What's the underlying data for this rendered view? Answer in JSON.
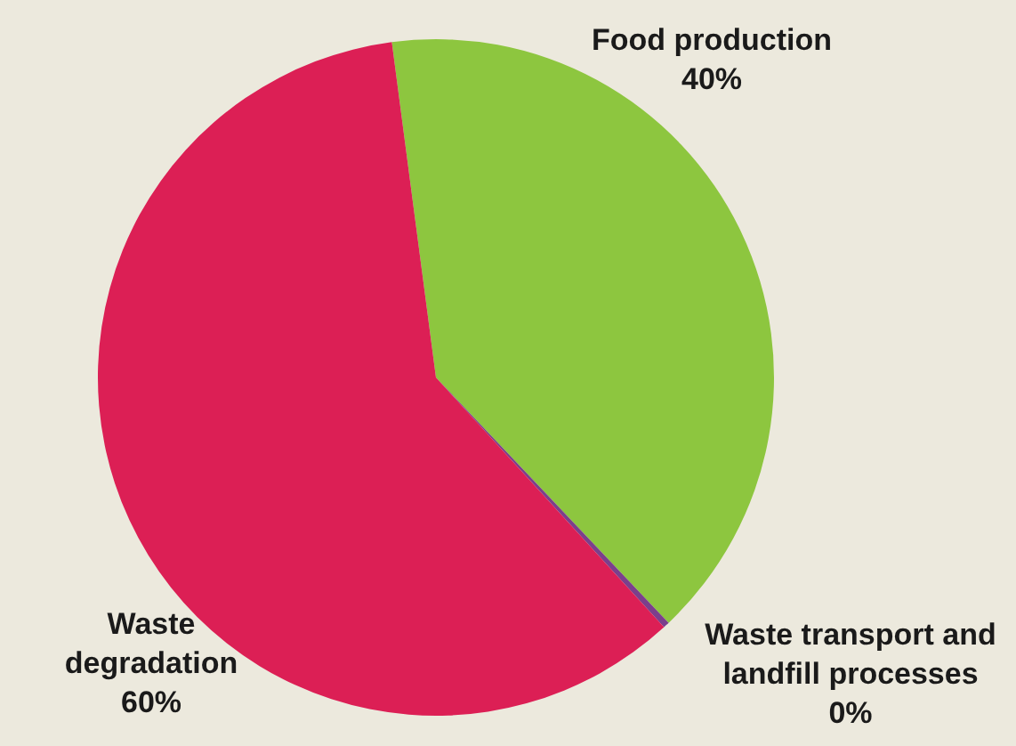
{
  "chart_data": {
    "type": "pie",
    "categories": [
      "Food production",
      "Waste transport and landfill processes",
      "Waste degradation"
    ],
    "values": [
      40,
      0.3,
      59.7
    ],
    "value_labels": [
      "40%",
      "0%",
      "60%"
    ],
    "colors": [
      "#8dc63f",
      "#7b3f8c",
      "#dc1f55"
    ],
    "legend": false
  }
}
